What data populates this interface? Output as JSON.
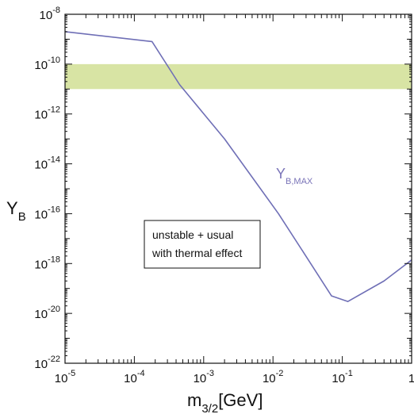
{
  "chart_data": {
    "type": "line",
    "x_scale": "log",
    "y_scale": "log",
    "xlim": [
      1e-05,
      1
    ],
    "ylim": [
      1e-22,
      1e-08
    ],
    "x_ticks": [
      {
        "value": 1e-05,
        "base": "10",
        "exp": "-5"
      },
      {
        "value": 0.0001,
        "base": "10",
        "exp": "-4"
      },
      {
        "value": 0.001,
        "base": "10",
        "exp": "-3"
      },
      {
        "value": 0.01,
        "base": "10",
        "exp": "-2"
      },
      {
        "value": 0.1,
        "base": "10",
        "exp": "-1"
      },
      {
        "value": 1,
        "base": "1",
        "exp": ""
      }
    ],
    "y_ticks": [
      {
        "value": 1e-08,
        "base": "10",
        "exp": "-8"
      },
      {
        "value": 1e-10,
        "base": "10",
        "exp": "-10"
      },
      {
        "value": 1e-12,
        "base": "10",
        "exp": "-12"
      },
      {
        "value": 1e-14,
        "base": "10",
        "exp": "-14"
      },
      {
        "value": 1e-16,
        "base": "10",
        "exp": "-16"
      },
      {
        "value": 1e-18,
        "base": "10",
        "exp": "-18"
      },
      {
        "value": 1e-20,
        "base": "10",
        "exp": "-20"
      },
      {
        "value": 1e-22,
        "base": "10",
        "exp": "-22"
      }
    ],
    "xlabel": {
      "main": "m",
      "sub": "3/2",
      "unit": "[GeV]"
    },
    "ylabel": {
      "main": "Y",
      "sub": "B"
    },
    "band": {
      "y_range": [
        1e-11,
        1e-10
      ],
      "color": "#d8e4a4"
    },
    "series": [
      {
        "name": {
          "main": "Y",
          "sub": "B,MAX"
        },
        "color": "#6f6fb6",
        "x": [
          1e-05,
          0.00018,
          0.00045,
          0.002,
          0.012,
          0.035,
          0.07,
          0.12,
          0.4,
          1.0
        ],
        "y": [
          2e-09,
          8e-10,
          1.5e-11,
          1e-13,
          1e-16,
          1e-18,
          5e-20,
          3e-20,
          2e-19,
          1.4e-18
        ]
      }
    ],
    "annotation": {
      "line1": "unstable + usual",
      "line2": "with thermal effect"
    },
    "grid": false,
    "frame": "box"
  }
}
